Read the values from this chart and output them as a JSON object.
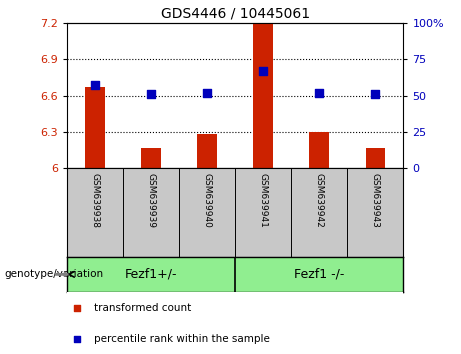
{
  "title": "GDS4446 / 10445061",
  "samples": [
    "GSM639938",
    "GSM639939",
    "GSM639940",
    "GSM639941",
    "GSM639942",
    "GSM639943"
  ],
  "transformed_counts": [
    6.67,
    6.17,
    6.28,
    7.19,
    6.3,
    6.17
  ],
  "percentile_ranks": [
    57,
    51,
    52,
    67,
    52,
    51
  ],
  "ylim_left": [
    6.0,
    7.2
  ],
  "ylim_right": [
    0,
    100
  ],
  "yticks_left": [
    6.0,
    6.3,
    6.6,
    6.9,
    7.2
  ],
  "yticks_right": [
    0,
    25,
    50,
    75,
    100
  ],
  "ytick_labels_left": [
    "6",
    "6.3",
    "6.6",
    "6.9",
    "7.2"
  ],
  "ytick_labels_right": [
    "0",
    "25",
    "50",
    "75",
    "100%"
  ],
  "hlines": [
    6.3,
    6.6,
    6.9
  ],
  "bar_color": "#cc2200",
  "dot_color": "#0000bb",
  "groups": [
    {
      "label": "Fezf1+/-",
      "indices": [
        0,
        1,
        2
      ]
    },
    {
      "label": "Fezf1 -/-",
      "indices": [
        3,
        4,
        5
      ]
    }
  ],
  "group_label_prefix": "genotype/variation",
  "legend_items": [
    {
      "label": "transformed count",
      "color": "#cc2200"
    },
    {
      "label": "percentile rank within the sample",
      "color": "#0000bb"
    }
  ],
  "tick_label_color_left": "#cc2200",
  "tick_label_color_right": "#0000bb",
  "bar_width": 0.35,
  "dot_size": 28,
  "background_label_row": "#c8c8c8",
  "background_group_row": "#90ee90"
}
